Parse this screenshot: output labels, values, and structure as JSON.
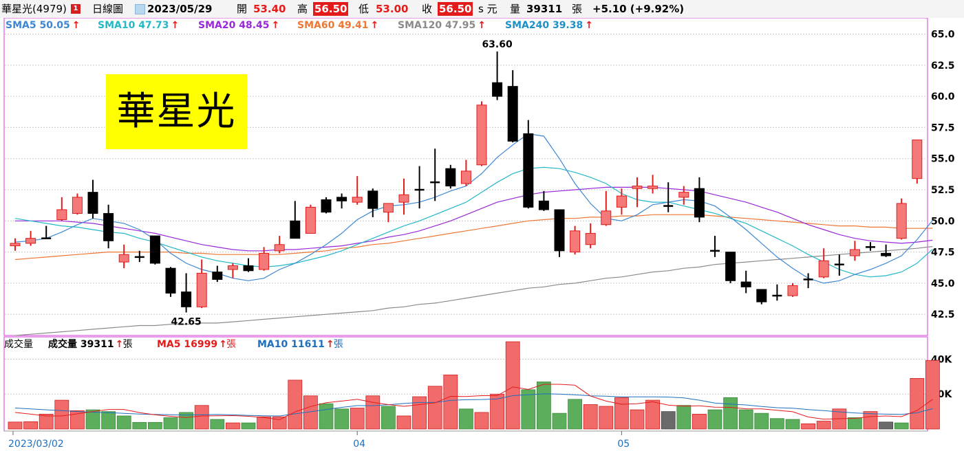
{
  "quote": {
    "name": "華星光(4979)",
    "flag": "1",
    "period": "日線圖",
    "date": "2023/05/29",
    "open_label": "開",
    "open": "53.40",
    "high_label": "高",
    "high": "56.50",
    "low_label": "低",
    "low": "53.00",
    "close_label": "收",
    "close": "56.50",
    "close_suffix": "s 元",
    "volume_label": "量",
    "volume": "39311",
    "volume_unit": "張",
    "change": "+5.10 (+9.92%)"
  },
  "price_legend": [
    {
      "label": "SMA5 50.05",
      "color": "#3d87d4"
    },
    {
      "label": "SMA10 47.73",
      "color": "#22b8c8"
    },
    {
      "label": "SMA20 48.45",
      "color": "#9a28d8"
    },
    {
      "label": "SMA60 49.41",
      "color": "#ee7733"
    },
    {
      "label": "SMA120 47.95",
      "color": "#8a8a8a"
    },
    {
      "label": "SMA240 39.38",
      "color": "#1e90c8"
    }
  ],
  "volume_legend": {
    "title": "成交量",
    "volume": {
      "label": "成交量 39311",
      "unit": "張",
      "color": "#000000"
    },
    "ma5": {
      "label": "MA5 16999",
      "unit": "張",
      "color": "#e31b1b"
    },
    "ma10": {
      "label": "MA10 11611",
      "unit": "張",
      "color": "#1e6fbd"
    }
  },
  "stock_title": "華星光",
  "annotations": {
    "high": "63.60",
    "low": "42.65"
  },
  "colors": {
    "up_fill": "#f47a7a",
    "up_border": "#e31b1b",
    "down": "#000000",
    "vol_up": "#f26b6b",
    "vol_down": "#5cae5c",
    "vol_flat": "#6a6a6a",
    "grid": "#cccccc",
    "frame": "#d83ad8"
  },
  "chart_data": {
    "type": "candlestick",
    "title": "華星光(4979) 日線圖",
    "y_axis": {
      "min": 40.8,
      "max": 66.3,
      "ticks": [
        42.5,
        45.0,
        47.5,
        50.0,
        52.5,
        55.0,
        57.5,
        60.0,
        62.5,
        65.0
      ],
      "position": "right"
    },
    "x_axis": {
      "labels": [
        {
          "index": 0,
          "text": "2023/03/02"
        },
        {
          "index": 22,
          "text": "04"
        },
        {
          "index": 39,
          "text": "05"
        }
      ]
    },
    "candles": [
      {
        "o": 48.0,
        "h": 48.6,
        "l": 47.6,
        "c": 48.2
      },
      {
        "o": 48.2,
        "h": 49.2,
        "l": 48.0,
        "c": 48.6
      },
      {
        "o": 48.6,
        "h": 49.6,
        "l": 48.6,
        "c": 48.6
      },
      {
        "o": 50.1,
        "h": 51.9,
        "l": 50.0,
        "c": 50.9
      },
      {
        "o": 50.6,
        "h": 52.2,
        "l": 50.5,
        "c": 51.9
      },
      {
        "o": 52.3,
        "h": 53.3,
        "l": 50.2,
        "c": 50.6
      },
      {
        "o": 50.6,
        "h": 51.3,
        "l": 47.8,
        "c": 48.4
      },
      {
        "o": 46.7,
        "h": 48.1,
        "l": 46.2,
        "c": 47.3
      },
      {
        "o": 47.1,
        "h": 47.6,
        "l": 46.7,
        "c": 47.1
      },
      {
        "o": 48.8,
        "h": 48.8,
        "l": 46.5,
        "c": 46.6
      },
      {
        "o": 46.2,
        "h": 46.3,
        "l": 43.9,
        "c": 44.2
      },
      {
        "o": 44.3,
        "h": 45.8,
        "l": 42.65,
        "c": 43.1
      },
      {
        "o": 43.1,
        "h": 46.9,
        "l": 43.0,
        "c": 45.8
      },
      {
        "o": 45.9,
        "h": 46.4,
        "l": 45.1,
        "c": 45.3
      },
      {
        "o": 46.1,
        "h": 46.6,
        "l": 45.4,
        "c": 46.4
      },
      {
        "o": 46.4,
        "h": 47.0,
        "l": 45.9,
        "c": 46.0
      },
      {
        "o": 46.1,
        "h": 47.9,
        "l": 46.0,
        "c": 47.4
      },
      {
        "o": 47.6,
        "h": 48.8,
        "l": 47.4,
        "c": 48.1
      },
      {
        "o": 50.0,
        "h": 51.6,
        "l": 48.6,
        "c": 48.6
      },
      {
        "o": 49.0,
        "h": 51.3,
        "l": 49.0,
        "c": 51.1
      },
      {
        "o": 51.7,
        "h": 51.9,
        "l": 50.6,
        "c": 50.7
      },
      {
        "o": 51.9,
        "h": 52.2,
        "l": 51.0,
        "c": 51.6
      },
      {
        "o": 51.5,
        "h": 53.6,
        "l": 51.3,
        "c": 51.9
      },
      {
        "o": 52.4,
        "h": 52.6,
        "l": 50.3,
        "c": 51.0
      },
      {
        "o": 50.7,
        "h": 51.4,
        "l": 49.9,
        "c": 51.4
      },
      {
        "o": 51.5,
        "h": 53.4,
        "l": 50.5,
        "c": 52.1
      },
      {
        "o": 52.5,
        "h": 54.4,
        "l": 51.0,
        "c": 52.5
      },
      {
        "o": 53.1,
        "h": 55.8,
        "l": 51.6,
        "c": 53.1
      },
      {
        "o": 54.2,
        "h": 54.5,
        "l": 52.6,
        "c": 52.8
      },
      {
        "o": 53.0,
        "h": 54.9,
        "l": 52.8,
        "c": 54.0
      },
      {
        "o": 54.5,
        "h": 59.6,
        "l": 54.4,
        "c": 59.3
      },
      {
        "o": 61.1,
        "h": 63.6,
        "l": 59.7,
        "c": 60.0
      },
      {
        "o": 60.8,
        "h": 62.1,
        "l": 56.3,
        "c": 56.4
      },
      {
        "o": 57.0,
        "h": 58.1,
        "l": 51.0,
        "c": 51.1
      },
      {
        "o": 51.6,
        "h": 52.4,
        "l": 50.8,
        "c": 50.9
      },
      {
        "o": 50.9,
        "h": 50.9,
        "l": 47.1,
        "c": 47.6
      },
      {
        "o": 47.5,
        "h": 49.6,
        "l": 47.3,
        "c": 49.2
      },
      {
        "o": 48.1,
        "h": 49.8,
        "l": 47.8,
        "c": 49.0
      },
      {
        "o": 49.7,
        "h": 52.4,
        "l": 49.6,
        "c": 50.8
      },
      {
        "o": 51.1,
        "h": 52.6,
        "l": 50.5,
        "c": 52.0
      },
      {
        "o": 52.6,
        "h": 53.5,
        "l": 51.1,
        "c": 52.8
      },
      {
        "o": 52.6,
        "h": 53.7,
        "l": 52.2,
        "c": 52.8
      },
      {
        "o": 51.2,
        "h": 53.1,
        "l": 50.7,
        "c": 51.2
      },
      {
        "o": 51.9,
        "h": 52.8,
        "l": 51.3,
        "c": 52.3
      },
      {
        "o": 52.6,
        "h": 53.5,
        "l": 49.9,
        "c": 50.3
      },
      {
        "o": 47.6,
        "h": 48.8,
        "l": 47.1,
        "c": 47.6
      },
      {
        "o": 47.5,
        "h": 47.5,
        "l": 45.0,
        "c": 45.2
      },
      {
        "o": 45.1,
        "h": 46.0,
        "l": 44.2,
        "c": 44.7
      },
      {
        "o": 44.5,
        "h": 44.5,
        "l": 43.3,
        "c": 43.5
      },
      {
        "o": 44.0,
        "h": 44.9,
        "l": 43.6,
        "c": 44.0
      },
      {
        "o": 44.0,
        "h": 45.0,
        "l": 43.9,
        "c": 44.8
      },
      {
        "o": 45.3,
        "h": 45.8,
        "l": 44.6,
        "c": 45.3
      },
      {
        "o": 45.5,
        "h": 47.8,
        "l": 45.4,
        "c": 46.8
      },
      {
        "o": 46.5,
        "h": 47.3,
        "l": 45.6,
        "c": 46.5
      },
      {
        "o": 47.2,
        "h": 48.4,
        "l": 46.8,
        "c": 47.7
      },
      {
        "o": 47.9,
        "h": 48.3,
        "l": 47.6,
        "c": 47.9
      },
      {
        "o": 47.4,
        "h": 48.1,
        "l": 47.1,
        "c": 47.2
      },
      {
        "o": 48.6,
        "h": 51.8,
        "l": 48.5,
        "c": 51.4
      },
      {
        "o": 53.4,
        "h": 56.5,
        "l": 53.0,
        "c": 56.5
      }
    ],
    "sma5": [
      48.3,
      48.4,
      48.6,
      49.1,
      49.7,
      50.2,
      50.0,
      49.8,
      49.3,
      48.5,
      47.4,
      46.6,
      46.1,
      45.8,
      45.4,
      45.2,
      45.4,
      46.1,
      46.6,
      47.3,
      48.1,
      49.0,
      50.1,
      50.8,
      51.2,
      51.3,
      51.5,
      51.9,
      52.4,
      52.8,
      53.8,
      55.1,
      56.1,
      57.0,
      56.8,
      55.0,
      53.0,
      51.4,
      50.2,
      50.0,
      50.5,
      51.3,
      51.5,
      51.7,
      51.6,
      51.2,
      50.3,
      49.3,
      48.2,
      47.1,
      46.2,
      45.4,
      45.0,
      45.2,
      45.7,
      46.1,
      46.6,
      47.2,
      48.5,
      50.05
    ],
    "sma10": [
      50.2,
      50.0,
      49.8,
      49.6,
      49.5,
      49.3,
      49.1,
      49.0,
      48.6,
      48.3,
      47.9,
      47.5,
      47.1,
      46.8,
      46.6,
      46.4,
      46.3,
      46.4,
      46.6,
      46.9,
      47.2,
      47.6,
      48.1,
      48.6,
      49.1,
      49.6,
      50.0,
      50.5,
      51.0,
      51.5,
      52.3,
      53.1,
      53.8,
      54.2,
      54.3,
      54.2,
      53.9,
      53.5,
      53.0,
      52.2,
      51.7,
      51.5,
      51.5,
      51.2,
      50.9,
      50.6,
      50.2,
      49.8,
      49.2,
      48.6,
      48.0,
      47.3,
      46.7,
      46.1,
      45.7,
      45.5,
      45.6,
      45.9,
      46.6,
      47.73
    ],
    "sma20": [
      50.0,
      50.0,
      50.0,
      50.0,
      49.9,
      49.8,
      49.6,
      49.4,
      49.2,
      49.0,
      48.7,
      48.4,
      48.1,
      47.9,
      47.7,
      47.6,
      47.6,
      47.7,
      47.7,
      47.8,
      47.9,
      48.0,
      48.2,
      48.4,
      48.7,
      48.9,
      49.2,
      49.6,
      50.0,
      50.5,
      51.0,
      51.5,
      51.8,
      52.1,
      52.3,
      52.4,
      52.5,
      52.6,
      52.7,
      52.7,
      52.7,
      52.7,
      52.6,
      52.5,
      52.4,
      52.1,
      51.8,
      51.5,
      51.1,
      50.7,
      50.2,
      49.7,
      49.3,
      48.9,
      48.6,
      48.4,
      48.3,
      48.2,
      48.3,
      48.45
    ],
    "sma60": [
      46.9,
      47.0,
      47.1,
      47.2,
      47.3,
      47.4,
      47.5,
      47.5,
      47.5,
      47.5,
      47.5,
      47.4,
      47.4,
      47.3,
      47.3,
      47.3,
      47.3,
      47.3,
      47.4,
      47.5,
      47.6,
      47.8,
      47.9,
      48.1,
      48.2,
      48.4,
      48.6,
      48.8,
      49.0,
      49.2,
      49.4,
      49.6,
      49.8,
      50.0,
      50.1,
      50.2,
      50.2,
      50.3,
      50.3,
      50.4,
      50.4,
      50.5,
      50.5,
      50.5,
      50.5,
      50.4,
      50.3,
      50.2,
      50.1,
      50.0,
      49.9,
      49.8,
      49.7,
      49.6,
      49.6,
      49.5,
      49.5,
      49.4,
      49.4,
      49.41
    ],
    "sma120": [
      40.8,
      40.9,
      41.0,
      41.1,
      41.2,
      41.3,
      41.4,
      41.5,
      41.6,
      41.6,
      41.7,
      41.7,
      41.8,
      41.8,
      41.9,
      42.0,
      42.1,
      42.2,
      42.3,
      42.4,
      42.5,
      42.6,
      42.7,
      42.8,
      43.0,
      43.1,
      43.3,
      43.4,
      43.6,
      43.8,
      44.0,
      44.2,
      44.4,
      44.6,
      44.7,
      44.9,
      45.0,
      45.2,
      45.4,
      45.5,
      45.7,
      45.9,
      46.0,
      46.2,
      46.3,
      46.5,
      46.6,
      46.7,
      46.8,
      46.9,
      47.0,
      47.1,
      47.2,
      47.3,
      47.4,
      47.5,
      47.6,
      47.7,
      47.8,
      47.95
    ],
    "volume": {
      "y_axis": {
        "min": 0,
        "max": 52000,
        "ticks": [
          20000,
          40000
        ],
        "tick_labels": [
          "20K",
          "40K"
        ]
      },
      "bars": [
        {
          "v": 4000,
          "d": "up"
        },
        {
          "v": 4200,
          "d": "up"
        },
        {
          "v": 8500,
          "d": "up"
        },
        {
          "v": 16500,
          "d": "up"
        },
        {
          "v": 10500,
          "d": "up"
        },
        {
          "v": 11000,
          "d": "down"
        },
        {
          "v": 10000,
          "d": "down"
        },
        {
          "v": 7500,
          "d": "down"
        },
        {
          "v": 3800,
          "d": "down"
        },
        {
          "v": 3800,
          "d": "down"
        },
        {
          "v": 6500,
          "d": "down"
        },
        {
          "v": 9500,
          "d": "down"
        },
        {
          "v": 13500,
          "d": "up"
        },
        {
          "v": 5500,
          "d": "down"
        },
        {
          "v": 3500,
          "d": "up"
        },
        {
          "v": 3500,
          "d": "down"
        },
        {
          "v": 7000,
          "d": "up"
        },
        {
          "v": 7000,
          "d": "up"
        },
        {
          "v": 28000,
          "d": "up"
        },
        {
          "v": 19000,
          "d": "up"
        },
        {
          "v": 14500,
          "d": "down"
        },
        {
          "v": 11500,
          "d": "down"
        },
        {
          "v": 12000,
          "d": "up"
        },
        {
          "v": 19000,
          "d": "up"
        },
        {
          "v": 13000,
          "d": "down"
        },
        {
          "v": 7500,
          "d": "up"
        },
        {
          "v": 18500,
          "d": "up"
        },
        {
          "v": 24500,
          "d": "up"
        },
        {
          "v": 31000,
          "d": "up"
        },
        {
          "v": 11500,
          "d": "down"
        },
        {
          "v": 9500,
          "d": "up"
        },
        {
          "v": 20000,
          "d": "up"
        },
        {
          "v": 50000,
          "d": "up"
        },
        {
          "v": 22500,
          "d": "down"
        },
        {
          "v": 27000,
          "d": "down"
        },
        {
          "v": 9000,
          "d": "down"
        },
        {
          "v": 17000,
          "d": "down"
        },
        {
          "v": 14000,
          "d": "up"
        },
        {
          "v": 13000,
          "d": "up"
        },
        {
          "v": 18000,
          "d": "up"
        },
        {
          "v": 11000,
          "d": "up"
        },
        {
          "v": 16500,
          "d": "up"
        },
        {
          "v": 10000,
          "d": "flat"
        },
        {
          "v": 13500,
          "d": "down"
        },
        {
          "v": 8500,
          "d": "up"
        },
        {
          "v": 11000,
          "d": "down"
        },
        {
          "v": 18000,
          "d": "down"
        },
        {
          "v": 11000,
          "d": "down"
        },
        {
          "v": 9000,
          "d": "down"
        },
        {
          "v": 6000,
          "d": "down"
        },
        {
          "v": 5500,
          "d": "down"
        },
        {
          "v": 3000,
          "d": "up"
        },
        {
          "v": 4500,
          "d": "up"
        },
        {
          "v": 11500,
          "d": "up"
        },
        {
          "v": 6500,
          "d": "down"
        },
        {
          "v": 10000,
          "d": "up"
        },
        {
          "v": 4000,
          "d": "flat"
        },
        {
          "v": 3500,
          "d": "down"
        },
        {
          "v": 29000,
          "d": "up"
        },
        {
          "v": 39311,
          "d": "up"
        }
      ],
      "ma5": [
        9500,
        8500,
        7500,
        7500,
        8700,
        10000,
        11200,
        11200,
        9400,
        8100,
        7300,
        6600,
        7500,
        7600,
        7700,
        7300,
        6600,
        5300,
        9800,
        12900,
        15100,
        16000,
        17000,
        15300,
        14000,
        13000,
        14000,
        15000,
        18700,
        18600,
        19100,
        19100,
        24100,
        22700,
        25600,
        25600,
        25100,
        18900,
        16000,
        14200,
        14500,
        15600,
        13700,
        13100,
        13300,
        12500,
        12400,
        11600,
        11500,
        10700,
        9900,
        6900,
        5600,
        5900,
        6100,
        7100,
        7500,
        7100,
        10600,
        16999
      ],
      "ma10": [
        12000,
        11500,
        11000,
        10500,
        10000,
        9600,
        9400,
        9000,
        8600,
        8300,
        8200,
        8000,
        8200,
        8300,
        8100,
        7800,
        7600,
        7500,
        8700,
        9900,
        11200,
        12400,
        13400,
        13400,
        13900,
        14600,
        15200,
        15200,
        16400,
        16800,
        16900,
        17200,
        19100,
        19600,
        20200,
        20000,
        19600,
        19000,
        18800,
        18400,
        18400,
        18400,
        18300,
        17800,
        16500,
        14900,
        14300,
        13800,
        12900,
        12200,
        11900,
        11100,
        10500,
        9800,
        9200,
        8800,
        8500,
        8400,
        9300,
        11611
      ]
    }
  }
}
